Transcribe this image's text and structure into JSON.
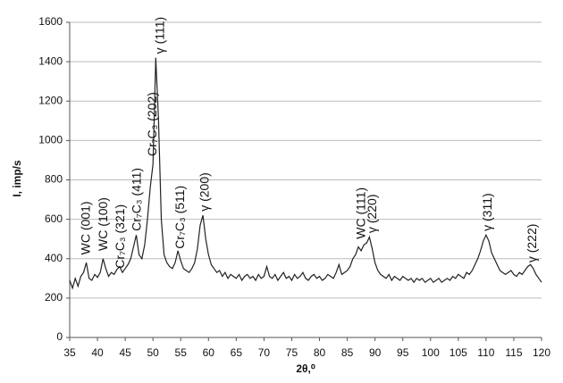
{
  "chart_data": {
    "type": "line",
    "y_label": "I, imp/s",
    "x_label": "2θ,⁰",
    "x": [
      35,
      35.5,
      36,
      36.5,
      37,
      37.5,
      38,
      38.5,
      39,
      39.5,
      40,
      40.5,
      41,
      41.5,
      42,
      42.5,
      43,
      43.5,
      44,
      44.5,
      45,
      45.5,
      46,
      46.5,
      47,
      47.5,
      48,
      48.5,
      49,
      49.5,
      50,
      50.5,
      51,
      51.5,
      52,
      52.5,
      53,
      53.5,
      54,
      54.5,
      55,
      55.5,
      56,
      56.5,
      57,
      57.5,
      58,
      58.5,
      59,
      59.5,
      60,
      60.5,
      61,
      61.5,
      62,
      62.5,
      63,
      63.5,
      64,
      64.5,
      65,
      65.5,
      66,
      66.5,
      67,
      67.5,
      68,
      68.5,
      69,
      69.5,
      70,
      70.5,
      71,
      71.5,
      72,
      72.5,
      73,
      73.5,
      74,
      74.5,
      75,
      75.5,
      76,
      76.5,
      77,
      77.5,
      78,
      78.5,
      79,
      79.5,
      80,
      80.5,
      81,
      81.5,
      82,
      82.5,
      83,
      83.5,
      84,
      84.5,
      85,
      85.5,
      86,
      86.5,
      87,
      87.5,
      88,
      88.5,
      89,
      89.5,
      90,
      90.5,
      91,
      91.5,
      92,
      92.5,
      93,
      93.5,
      94,
      94.5,
      95,
      95.5,
      96,
      96.5,
      97,
      97.5,
      98,
      98.5,
      99,
      99.5,
      100,
      100.5,
      101,
      101.5,
      102,
      102.5,
      103,
      103.5,
      104,
      104.5,
      105,
      105.5,
      106,
      106.5,
      107,
      107.5,
      108,
      108.5,
      109,
      109.5,
      110,
      110.5,
      111,
      111.5,
      112,
      112.5,
      113,
      113.5,
      114,
      114.5,
      115,
      115.5,
      116,
      116.5,
      117,
      117.5,
      118,
      118.5,
      119,
      119.5,
      120
    ],
    "series": [
      {
        "color": "#222222",
        "values": [
          290,
          250,
          300,
          260,
          310,
          330,
          380,
          300,
          290,
          320,
          305,
          330,
          400,
          350,
          310,
          330,
          320,
          345,
          360,
          330,
          350,
          370,
          400,
          460,
          520,
          420,
          400,
          470,
          600,
          760,
          880,
          1420,
          1100,
          600,
          420,
          380,
          360,
          350,
          380,
          440,
          390,
          350,
          340,
          330,
          350,
          380,
          450,
          570,
          620,
          500,
          420,
          370,
          350,
          330,
          340,
          310,
          330,
          300,
          320,
          310,
          300,
          320,
          290,
          310,
          320,
          300,
          310,
          290,
          320,
          300,
          310,
          360,
          310,
          300,
          320,
          290,
          310,
          330,
          300,
          310,
          290,
          320,
          300,
          310,
          330,
          300,
          290,
          310,
          320,
          300,
          310,
          290,
          300,
          320,
          310,
          300,
          330,
          370,
          320,
          330,
          340,
          360,
          400,
          420,
          460,
          440,
          470,
          480,
          510,
          450,
          380,
          340,
          320,
          310,
          300,
          320,
          290,
          310,
          300,
          290,
          310,
          300,
          290,
          300,
          280,
          300,
          290,
          300,
          280,
          290,
          300,
          280,
          290,
          300,
          280,
          290,
          300,
          290,
          310,
          300,
          320,
          310,
          300,
          330,
          320,
          340,
          370,
          400,
          440,
          490,
          520,
          490,
          430,
          400,
          370,
          340,
          330,
          320,
          330,
          340,
          320,
          310,
          330,
          320,
          340,
          360,
          370,
          350,
          320,
          300,
          280
        ]
      }
    ],
    "xlim": [
      35,
      120
    ],
    "xticks": [
      35,
      40,
      45,
      50,
      55,
      60,
      65,
      70,
      75,
      80,
      85,
      90,
      95,
      100,
      105,
      110,
      115,
      120
    ],
    "ylim": [
      0,
      1600
    ],
    "yticks": [
      0,
      200,
      400,
      600,
      800,
      1000,
      1200,
      1400,
      1600
    ],
    "grid": true,
    "annotations": [
      "WC (001)",
      "WC (100)",
      "Cr₇C₃ (321)",
      "Cr₇C₃ (411)",
      "Cr₇C₃ (202)",
      "γ (111)",
      "Cr₇C₃ (511)",
      "γ (200)",
      "WC (111)",
      "γ (220)",
      "γ (311)",
      "γ (222)"
    ]
  }
}
